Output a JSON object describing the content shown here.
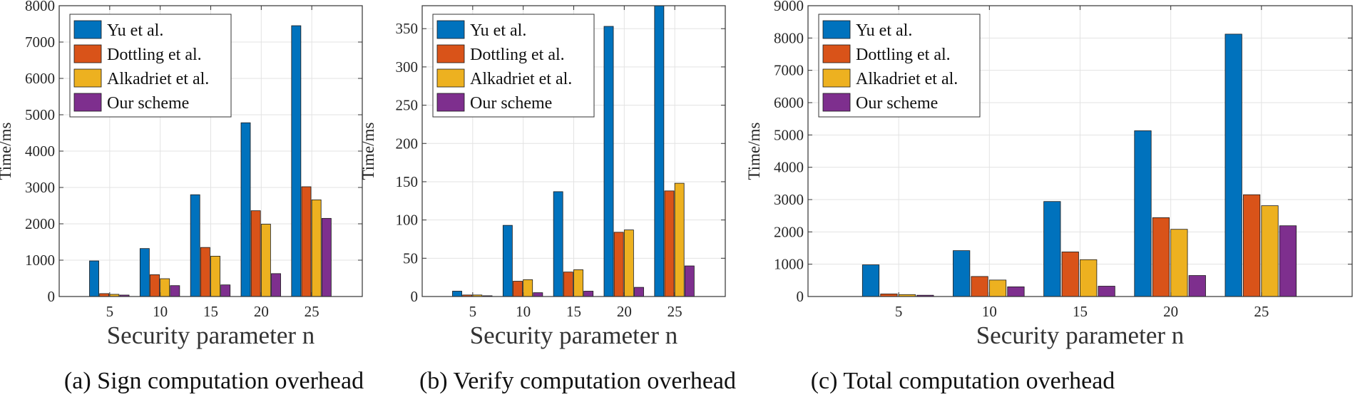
{
  "figure": {
    "legend_entries": [
      "Yu et al.",
      "Dottling et al.",
      "Alkadriet et al.",
      "Our scheme"
    ],
    "colors": [
      "#0072BD",
      "#D95319",
      "#EDB120",
      "#7E2F8E"
    ]
  },
  "chart_data": [
    {
      "type": "bar",
      "caption": "(a) Sign computation overhead",
      "xlabel": "Security parameter n",
      "ylabel": "Time/ms",
      "categories": [
        "5",
        "10",
        "15",
        "20",
        "25"
      ],
      "ylim": [
        0,
        8000
      ],
      "yticks": [
        0,
        1000,
        2000,
        3000,
        4000,
        5000,
        6000,
        7000,
        8000
      ],
      "legend_position": "top-left",
      "grid": true,
      "series": [
        {
          "name": "Yu et al.",
          "values": [
            980,
            1320,
            2800,
            4780,
            7450
          ]
        },
        {
          "name": "Dottling et al.",
          "values": [
            80,
            600,
            1350,
            2360,
            3020
          ]
        },
        {
          "name": "Alkadriet et al.",
          "values": [
            60,
            490,
            1110,
            1990,
            2660
          ]
        },
        {
          "name": "Our scheme",
          "values": [
            40,
            300,
            320,
            630,
            2150
          ]
        }
      ]
    },
    {
      "type": "bar",
      "caption": "(b) Verify computation overhead",
      "xlabel": "Security parameter n",
      "ylabel": "Time/ms",
      "categories": [
        "5",
        "10",
        "15",
        "20",
        "25"
      ],
      "ylim": [
        0,
        380
      ],
      "yticks": [
        0,
        50,
        100,
        150,
        200,
        250,
        300,
        350
      ],
      "legend_position": "top-left",
      "grid": true,
      "series": [
        {
          "name": "Yu et al.",
          "values": [
            7,
            93,
            137,
            353,
            380
          ]
        },
        {
          "name": "Dottling et al.",
          "values": [
            2,
            20,
            32,
            84,
            138
          ]
        },
        {
          "name": "Alkadriet et al.",
          "values": [
            2,
            22,
            35,
            87,
            148
          ]
        },
        {
          "name": "Our scheme",
          "values": [
            1,
            5,
            7,
            12,
            40
          ]
        }
      ]
    },
    {
      "type": "bar",
      "caption": "(c) Total computation overhead",
      "xlabel": "Security parameter n",
      "ylabel": "Time/ms",
      "categories": [
        "5",
        "10",
        "15",
        "20",
        "25"
      ],
      "ylim": [
        0,
        9000
      ],
      "yticks": [
        0,
        1000,
        2000,
        3000,
        4000,
        5000,
        6000,
        7000,
        8000,
        9000
      ],
      "legend_position": "top-left",
      "grid": true,
      "series": [
        {
          "name": "Yu et al.",
          "values": [
            980,
            1420,
            2940,
            5130,
            8120
          ]
        },
        {
          "name": "Dottling et al.",
          "values": [
            80,
            620,
            1380,
            2440,
            3150
          ]
        },
        {
          "name": "Alkadriet et al.",
          "values": [
            60,
            510,
            1140,
            2080,
            2810
          ]
        },
        {
          "name": "Our scheme",
          "values": [
            40,
            300,
            320,
            650,
            2190
          ]
        }
      ]
    }
  ]
}
